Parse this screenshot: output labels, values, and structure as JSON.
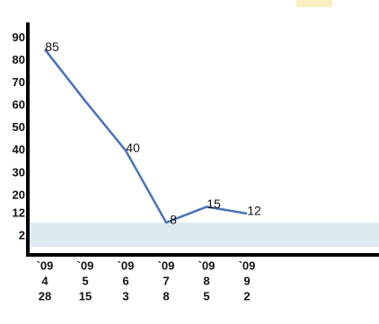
{
  "chart_data": {
    "type": "line",
    "categories": [
      [
        "`09",
        "4",
        "28"
      ],
      [
        "`09",
        "5",
        "15"
      ],
      [
        "`09",
        "6",
        "3"
      ],
      [
        "`09",
        "7",
        "8"
      ],
      [
        "`09",
        "8",
        "5"
      ],
      [
        "`09",
        "9",
        "2"
      ]
    ],
    "series": [
      {
        "color": "#4a72b8",
        "values": [
          85,
          62,
          40,
          8,
          15,
          12
        ],
        "value_labels": [
          "85",
          null,
          "40",
          "8",
          "15",
          "12"
        ]
      }
    ],
    "ylim": [
      -6,
      97
    ],
    "yticks": [
      90,
      80,
      70,
      60,
      50,
      40,
      30,
      20,
      12,
      2
    ]
  }
}
